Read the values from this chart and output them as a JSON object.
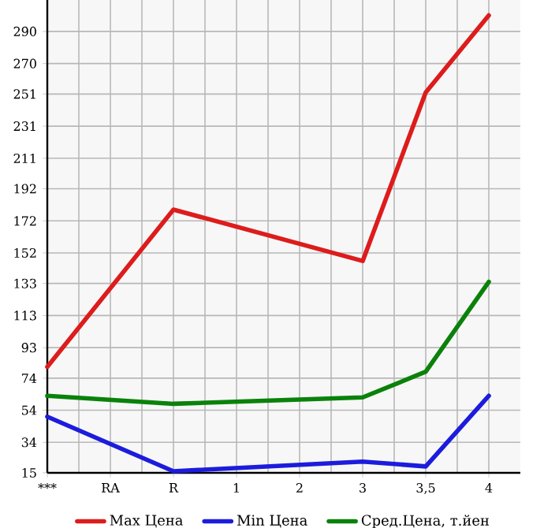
{
  "chart_data": {
    "type": "line",
    "categories": [
      "***",
      "RA",
      "R",
      "1",
      "2",
      "3",
      "3,5",
      "4"
    ],
    "series": [
      {
        "name": "Max Цена",
        "color": "#dd1c1c",
        "values": [
          81,
          null,
          179,
          null,
          null,
          147,
          252,
          300
        ]
      },
      {
        "name": "Min Цена",
        "color": "#1c1cdd",
        "values": [
          50,
          null,
          16,
          null,
          null,
          22,
          19,
          63
        ]
      },
      {
        "name": "Сред.Цена, т.йен",
        "color": "#0a820a",
        "values": [
          63,
          null,
          58,
          null,
          null,
          62,
          78,
          134
        ]
      }
    ],
    "ylim": [
      15,
      309.6
    ],
    "yticks": [
      15,
      34,
      54,
      74,
      93,
      113,
      133,
      152,
      172,
      192,
      211,
      231,
      251,
      270,
      290
    ],
    "grid": true,
    "legend": "bottom",
    "marker": "none",
    "line_style": "solid"
  }
}
